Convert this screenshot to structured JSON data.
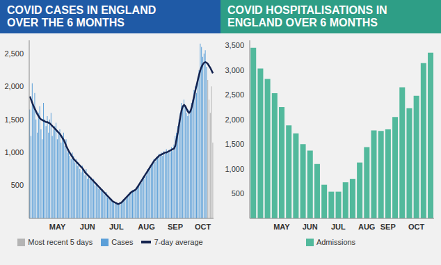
{
  "chart_data": [
    {
      "type": "bar",
      "title": "COVID CASES IN ENGLAND OVER THE 6 MONTHS",
      "categories": [
        null,
        null,
        null,
        null,
        null,
        null,
        null,
        null,
        null,
        null,
        null,
        null,
        null,
        null,
        null,
        null,
        null,
        null,
        null,
        null,
        null,
        null,
        "MAY",
        null,
        null,
        null,
        null,
        null,
        null,
        null,
        null,
        null,
        null,
        null,
        null,
        null,
        null,
        null,
        null,
        null,
        null,
        null,
        null,
        null,
        null,
        null,
        "JUN",
        null,
        null,
        null,
        null,
        null,
        null,
        null,
        null,
        null,
        null,
        null,
        null,
        null,
        null,
        null,
        null,
        null,
        null,
        null,
        null,
        null,
        null,
        "JUL",
        null,
        null,
        null,
        null,
        null,
        null,
        null,
        null,
        null,
        null,
        null,
        null,
        null,
        null,
        null,
        null,
        null,
        null,
        null,
        null,
        null,
        null,
        null,
        "AUG",
        null,
        null,
        null,
        null,
        null,
        null,
        null,
        null,
        null,
        null,
        null,
        null,
        null,
        null,
        null,
        null,
        null,
        null,
        null,
        null,
        null,
        null,
        "SEP",
        null,
        null,
        null,
        null,
        null,
        null,
        null,
        null,
        null,
        null,
        null,
        null,
        null,
        null,
        null,
        null,
        null,
        null,
        null,
        null,
        null,
        "OCT",
        null,
        null,
        null,
        null,
        null,
        null,
        null,
        null
      ],
      "series": [
        {
          "name": "Most recent 5 days",
          "color": "#b4b4b4",
          "values": [
            null,
            null,
            null,
            null,
            null,
            null,
            null,
            null,
            null,
            null,
            null,
            null,
            null,
            null,
            null,
            null,
            null,
            null,
            null,
            null,
            null,
            null,
            null,
            null,
            null,
            null,
            null,
            null,
            null,
            null,
            null,
            null,
            null,
            null,
            null,
            null,
            null,
            null,
            null,
            null,
            null,
            null,
            null,
            null,
            null,
            null,
            null,
            null,
            null,
            null,
            null,
            null,
            null,
            null,
            null,
            null,
            null,
            null,
            null,
            null,
            null,
            null,
            null,
            null,
            null,
            null,
            null,
            null,
            null,
            null,
            null,
            null,
            null,
            null,
            null,
            null,
            null,
            null,
            null,
            null,
            null,
            null,
            null,
            null,
            null,
            null,
            null,
            null,
            null,
            null,
            null,
            null,
            null,
            null,
            null,
            null,
            null,
            null,
            null,
            null,
            null,
            null,
            null,
            null,
            null,
            null,
            null,
            null,
            null,
            null,
            null,
            null,
            null,
            null,
            null,
            null,
            null,
            null,
            null,
            null,
            null,
            null,
            null,
            null,
            null,
            null,
            null,
            null,
            null,
            null,
            null,
            null,
            null,
            null,
            null,
            null,
            null,
            null,
            null,
            null,
            null,
            null,
            2100,
            1800,
            1600,
            2000,
            1150
          ]
        },
        {
          "name": "Cases",
          "color": "#5b9fd8",
          "values": [
            1650,
            1250,
            2050,
            1700,
            1900,
            1500,
            1300,
            1600,
            1700,
            1350,
            1200,
            1750,
            1500,
            1400,
            1550,
            1300,
            1500,
            1600,
            1250,
            1350,
            1400,
            1450,
            1200,
            1300,
            1350,
            1150,
            1250,
            1300,
            1100,
            1200,
            1000,
            1050,
            950,
            900,
            1000,
            950,
            850,
            900,
            800,
            850,
            750,
            700,
            800,
            700,
            650,
            750,
            600,
            650,
            600,
            620,
            560,
            600,
            500,
            540,
            480,
            450,
            480,
            420,
            440,
            380,
            360,
            400,
            320,
            330,
            290,
            300,
            250,
            260,
            230,
            240,
            210,
            230,
            200,
            250,
            270,
            290,
            310,
            300,
            360,
            350,
            400,
            380,
            430,
            410,
            420,
            470,
            460,
            520,
            560,
            540,
            620,
            600,
            680,
            650,
            750,
            720,
            800,
            820,
            850,
            900,
            860,
            930,
            920,
            980,
            950,
            1000,
            950,
            1020,
            980,
            1050,
            990,
            1040,
            1000,
            1080,
            1020,
            1120,
            1250,
            1300,
            1400,
            1500,
            1600,
            1750,
            1650,
            1800,
            1700,
            1600,
            1550,
            1650,
            1600,
            1750,
            1800,
            1950,
            2000,
            1900,
            2150,
            2250,
            2650,
            2600,
            2450,
            2500,
            2550,
            2300,
            null,
            null,
            null,
            null,
            null
          ]
        },
        {
          "name": "7-day average",
          "color": "#14234f",
          "type": "line",
          "values": [
            1850,
            1800,
            1750,
            1700,
            1660,
            1620,
            1580,
            1550,
            1520,
            1500,
            1490,
            1480,
            1470,
            1460,
            1460,
            1450,
            1440,
            1420,
            1400,
            1380,
            1360,
            1340,
            1320,
            1300,
            1280,
            1250,
            1220,
            1190,
            1150,
            1100,
            1060,
            1020,
            990,
            960,
            930,
            900,
            880,
            860,
            840,
            820,
            800,
            780,
            760,
            730,
            700,
            680,
            660,
            640,
            620,
            600,
            580,
            560,
            540,
            520,
            500,
            480,
            460,
            440,
            420,
            400,
            380,
            360,
            340,
            320,
            300,
            280,
            260,
            250,
            240,
            230,
            220,
            220,
            230,
            240,
            260,
            280,
            300,
            320,
            340,
            360,
            380,
            400,
            410,
            420,
            430,
            450,
            480,
            510,
            540,
            570,
            600,
            630,
            660,
            690,
            720,
            750,
            780,
            810,
            840,
            870,
            890,
            910,
            930,
            950,
            960,
            970,
            980,
            990,
            1000,
            1000,
            1010,
            1020,
            1030,
            1040,
            1050,
            1060,
            1100,
            1200,
            1300,
            1420,
            1540,
            1640,
            1700,
            1720,
            1700,
            1660,
            1620,
            1600,
            1620,
            1680,
            1760,
            1850,
            1940,
            2020,
            2100,
            2180,
            2250,
            2300,
            2340,
            2360,
            2370,
            2360,
            2340,
            2310,
            2280,
            2240,
            2200
          ]
        }
      ],
      "ylim": [
        0,
        2700
      ],
      "yticks": [
        500,
        {
          "value": 1000,
          "label": "1,000"
        },
        {
          "value": 1500,
          "label": "1,500"
        },
        {
          "value": 2000,
          "label": "2,000"
        },
        {
          "value": 2500,
          "label": "2,500"
        }
      ],
      "grid": false,
      "legend": "bottom"
    },
    {
      "type": "bar",
      "title": "COVID HOSPITALISATIONS IN ENGLAND OVER 6 MONTHS",
      "categories": [
        null,
        null,
        null,
        null,
        "MAY",
        null,
        null,
        null,
        "JUN",
        null,
        null,
        null,
        "JUL",
        null,
        null,
        null,
        "AUG",
        null,
        null,
        "SEP",
        null,
        null,
        null,
        "OCT",
        null,
        null
      ],
      "series": [
        {
          "name": "Admissions",
          "color": "#52b99c",
          "values": [
            3450,
            3030,
            2820,
            2530,
            2250,
            1880,
            1720,
            1500,
            1370,
            1100,
            680,
            540,
            540,
            730,
            800,
            1130,
            1440,
            1780,
            1770,
            1800,
            2050,
            2650,
            2230,
            2480,
            3140,
            3350
          ]
        }
      ],
      "ylim": [
        0,
        3600
      ],
      "yticks": [
        500,
        {
          "value": 1000,
          "label": "1,000"
        },
        {
          "value": 1500,
          "label": "1,500"
        },
        {
          "value": 2000,
          "label": "2,000"
        },
        {
          "value": 2500,
          "label": "2,500"
        },
        {
          "value": 3000,
          "label": "3,000"
        },
        {
          "value": 3500,
          "label": "3,500"
        }
      ],
      "grid": false,
      "legend": "bottom"
    }
  ]
}
